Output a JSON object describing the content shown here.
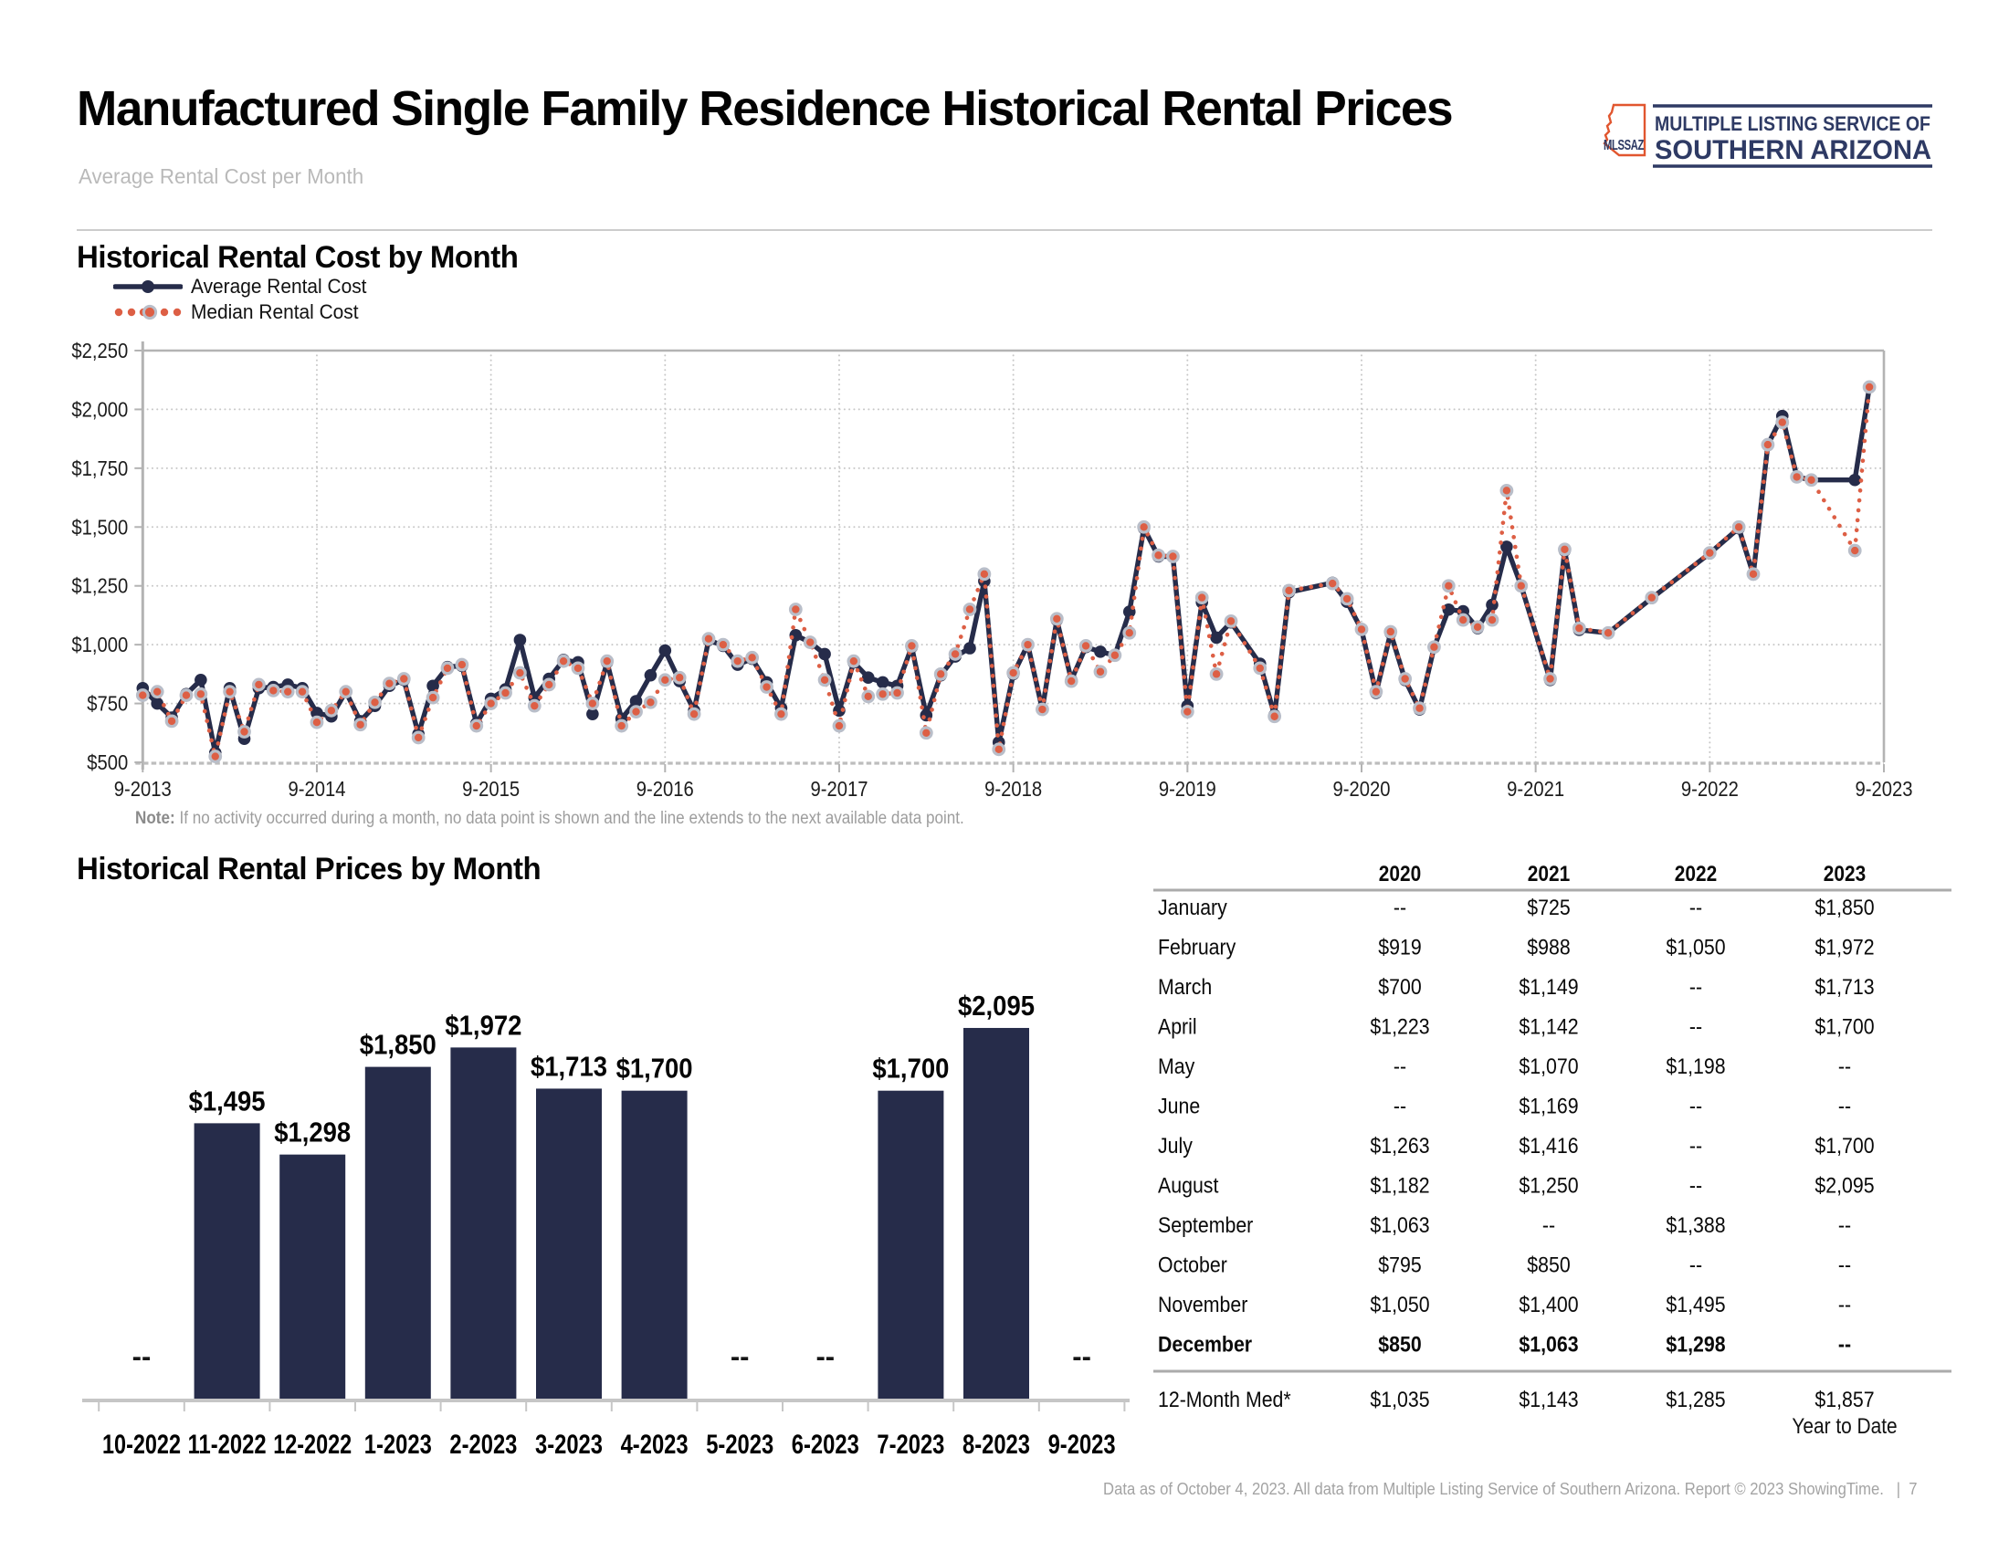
{
  "page": {
    "title": "Manufactured Single Family Residence Historical Rental Prices",
    "subtitle": "Average Rental Cost per Month",
    "footer_text": "Data as of October 4, 2023. All data from Multiple Listing Service of Southern Arizona. Report © 2023 ShowingTime.",
    "footer_separator": "|",
    "page_number": "7"
  },
  "logo": {
    "state_abbr": "MLSSAZ",
    "line1": "MULTIPLE LISTING SERVICE OF",
    "line2": "SOUTHERN ARIZONA",
    "navy": "#2E3A64",
    "orange": "#E1562F"
  },
  "line_section": {
    "title": "Historical Rental Cost by Month",
    "legend": [
      {
        "label": "Average Rental Cost",
        "style": "solid",
        "color": "#262C4A"
      },
      {
        "label": "Median Rental Cost",
        "style": "dotted",
        "color": "#DD5F45"
      }
    ],
    "note_label": "Note:",
    "note_text": "If no activity occurred during a month, no data point is shown and the line extends to the next available data point."
  },
  "bar_section": {
    "title": "Historical Rental Prices by Month"
  },
  "table": {
    "col_headers": [
      "2020",
      "2021",
      "2022",
      "2023"
    ],
    "rows": [
      {
        "label": "January",
        "values": [
          "--",
          "$725",
          "--",
          "$1,850"
        ],
        "bold": false
      },
      {
        "label": "February",
        "values": [
          "$919",
          "$988",
          "$1,050",
          "$1,972"
        ],
        "bold": false
      },
      {
        "label": "March",
        "values": [
          "$700",
          "$1,149",
          "--",
          "$1,713"
        ],
        "bold": false
      },
      {
        "label": "April",
        "values": [
          "$1,223",
          "$1,142",
          "--",
          "$1,700"
        ],
        "bold": false
      },
      {
        "label": "May",
        "values": [
          "--",
          "$1,070",
          "$1,198",
          "--"
        ],
        "bold": false
      },
      {
        "label": "June",
        "values": [
          "--",
          "$1,169",
          "--",
          "--"
        ],
        "bold": false
      },
      {
        "label": "July",
        "values": [
          "$1,263",
          "$1,416",
          "--",
          "$1,700"
        ],
        "bold": false
      },
      {
        "label": "August",
        "values": [
          "$1,182",
          "$1,250",
          "--",
          "$2,095"
        ],
        "bold": false
      },
      {
        "label": "September",
        "values": [
          "$1,063",
          "--",
          "$1,388",
          "--"
        ],
        "bold": false
      },
      {
        "label": "October",
        "values": [
          "$795",
          "$850",
          "--",
          "--"
        ],
        "bold": false
      },
      {
        "label": "November",
        "values": [
          "$1,050",
          "$1,400",
          "$1,495",
          "--"
        ],
        "bold": false
      },
      {
        "label": "December",
        "values": [
          "$850",
          "$1,063",
          "$1,298",
          "--"
        ],
        "bold": true
      }
    ],
    "summary_row": {
      "label": "12-Month Med*",
      "values": [
        "$1,035",
        "$1,143",
        "$1,285",
        "$1,857"
      ]
    },
    "annotation": "Year to Date"
  },
  "chart_data": [
    {
      "type": "line",
      "title": "Historical Rental Cost by Month",
      "xlabel": "",
      "ylabel": "",
      "ylim": [
        500,
        2250
      ],
      "ytick_step": 250,
      "y_tick_labels": [
        "$500",
        "$750",
        "$1,000",
        "$1,250",
        "$1,500",
        "$1,750",
        "$2,000",
        "$2,250"
      ],
      "x_tick_labels": [
        "9-2013",
        "9-2014",
        "9-2015",
        "9-2016",
        "9-2017",
        "9-2018",
        "9-2019",
        "9-2020",
        "9-2021",
        "9-2022",
        "9-2023"
      ],
      "months": [
        "9-2013",
        "10-2013",
        "11-2013",
        "12-2013",
        "1-2014",
        "2-2014",
        "3-2014",
        "4-2014",
        "5-2014",
        "6-2014",
        "7-2014",
        "8-2014",
        "9-2014",
        "10-2014",
        "11-2014",
        "12-2014",
        "1-2015",
        "2-2015",
        "3-2015",
        "4-2015",
        "5-2015",
        "6-2015",
        "7-2015",
        "8-2015",
        "9-2015",
        "10-2015",
        "11-2015",
        "12-2015",
        "1-2016",
        "2-2016",
        "3-2016",
        "4-2016",
        "5-2016",
        "6-2016",
        "7-2016",
        "8-2016",
        "9-2016",
        "10-2016",
        "11-2016",
        "12-2016",
        "1-2017",
        "2-2017",
        "3-2017",
        "4-2017",
        "5-2017",
        "6-2017",
        "7-2017",
        "8-2017",
        "9-2017",
        "10-2017",
        "11-2017",
        "12-2017",
        "1-2018",
        "2-2018",
        "3-2018",
        "4-2018",
        "5-2018",
        "6-2018",
        "7-2018",
        "8-2018",
        "9-2018",
        "10-2018",
        "11-2018",
        "12-2018",
        "1-2019",
        "2-2019",
        "3-2019",
        "4-2019",
        "5-2019",
        "6-2019",
        "7-2019",
        "8-2019",
        "9-2019",
        "10-2019",
        "11-2019",
        "12-2019",
        "1-2020",
        "2-2020",
        "3-2020",
        "4-2020",
        "5-2020",
        "6-2020",
        "7-2020",
        "8-2020",
        "9-2020",
        "10-2020",
        "11-2020",
        "12-2020",
        "1-2021",
        "2-2021",
        "3-2021",
        "4-2021",
        "5-2021",
        "6-2021",
        "7-2021",
        "8-2021",
        "9-2021",
        "10-2021",
        "11-2021",
        "12-2021",
        "1-2022",
        "2-2022",
        "3-2022",
        "4-2022",
        "5-2022",
        "6-2022",
        "7-2022",
        "8-2022",
        "9-2022",
        "10-2022",
        "11-2022",
        "12-2022",
        "1-2023",
        "2-2023",
        "3-2023",
        "4-2023",
        "5-2023",
        "6-2023",
        "7-2023",
        "8-2023",
        "9-2023"
      ],
      "series": [
        {
          "name": "Average Rental Cost",
          "color": "#262C4A",
          "style": "solid",
          "values": [
            815,
            750,
            690,
            790,
            850,
            540,
            815,
            600,
            815,
            820,
            830,
            815,
            710,
            695,
            800,
            675,
            740,
            825,
            850,
            620,
            825,
            905,
            910,
            665,
            770,
            810,
            1020,
            775,
            855,
            935,
            925,
            705,
            925,
            685,
            760,
            870,
            975,
            845,
            720,
            1020,
            995,
            915,
            940,
            840,
            730,
            1040,
            1010,
            960,
            720,
            925,
            860,
            840,
            825,
            990,
            700,
            870,
            950,
            985,
            1270,
            585,
            875,
            1000,
            725,
            1105,
            850,
            990,
            970,
            955,
            1140,
            1495,
            1375,
            1375,
            740,
            1180,
            1030,
            1095,
            null,
            919,
            700,
            1223,
            null,
            null,
            1263,
            1182,
            1063,
            795,
            1050,
            850,
            725,
            988,
            1149,
            1142,
            1070,
            1169,
            1416,
            1250,
            null,
            850,
            1400,
            1063,
            null,
            1050,
            null,
            null,
            1198,
            null,
            null,
            null,
            1388,
            null,
            1495,
            1298,
            1850,
            1972,
            1713,
            1700,
            null,
            null,
            1700,
            2095,
            null
          ]
        },
        {
          "name": "Median Rental Cost",
          "color": "#DD5F45",
          "style": "dotted",
          "values": [
            785,
            800,
            675,
            785,
            790,
            525,
            800,
            630,
            830,
            805,
            800,
            800,
            670,
            720,
            800,
            660,
            755,
            835,
            855,
            605,
            775,
            900,
            915,
            655,
            750,
            795,
            880,
            740,
            830,
            930,
            900,
            750,
            930,
            655,
            715,
            755,
            850,
            860,
            705,
            1025,
            1000,
            930,
            945,
            820,
            705,
            1150,
            1010,
            850,
            655,
            930,
            780,
            790,
            795,
            995,
            625,
            875,
            960,
            1150,
            1300,
            555,
            880,
            1000,
            725,
            1110,
            845,
            995,
            885,
            955,
            1050,
            1500,
            1380,
            1375,
            715,
            1200,
            875,
            1100,
            null,
            900,
            695,
            1230,
            null,
            null,
            1260,
            1195,
            1065,
            800,
            1055,
            855,
            730,
            990,
            1250,
            1105,
            1075,
            1105,
            1655,
            1250,
            null,
            855,
            1405,
            1070,
            null,
            1050,
            null,
            null,
            1200,
            null,
            null,
            null,
            1390,
            null,
            1500,
            1300,
            1850,
            1945,
            1713,
            1700,
            null,
            null,
            1400,
            2095,
            null
          ]
        }
      ],
      "grid": true,
      "legend_position": "top-left"
    },
    {
      "type": "bar",
      "title": "Historical Rental Prices by Month",
      "categories": [
        "10-2022",
        "11-2022",
        "12-2022",
        "1-2023",
        "2-2023",
        "3-2023",
        "4-2023",
        "5-2023",
        "6-2023",
        "7-2023",
        "8-2023",
        "9-2023"
      ],
      "values": [
        null,
        1495,
        1298,
        1850,
        1972,
        1713,
        1700,
        null,
        null,
        1700,
        2095,
        null
      ],
      "bar_labels": [
        "--",
        "$1,495",
        "$1,298",
        "$1,850",
        "$1,972",
        "$1,713",
        "$1,700",
        "--",
        "--",
        "$1,700",
        "$2,095",
        "--"
      ],
      "missing_label": "--",
      "bar_color": "#262C4A",
      "xlabel": "",
      "ylabel": ""
    }
  ]
}
